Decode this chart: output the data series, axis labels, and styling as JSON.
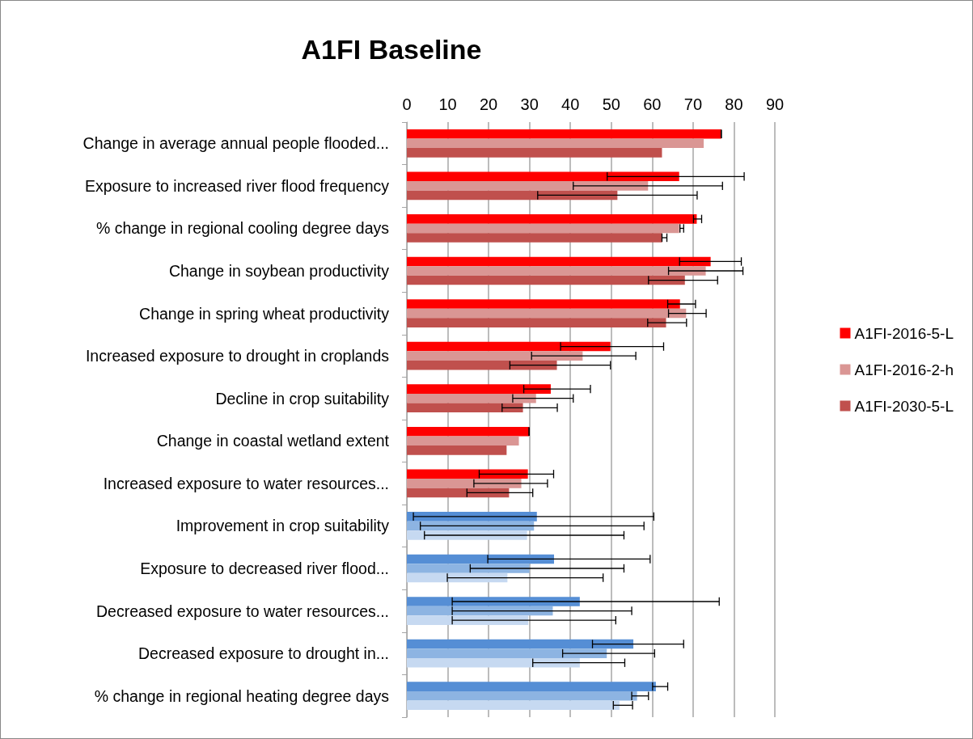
{
  "chart_data": {
    "type": "bar",
    "orientation": "horizontal",
    "title": "A1FI Baseline",
    "categories": [
      "Change in average annual people flooded...",
      "Exposure to increased river flood frequency",
      "% change in regional cooling degree days",
      "Change in soybean productivity",
      "Change in spring wheat productivity",
      "Increased exposure to drought in croplands",
      "Decline in crop suitability",
      "Change in coastal wetland extent",
      "Increased exposure to water resources...",
      "Improvement in crop suitability",
      "Exposure to decreased river flood...",
      "Decreased exposure to water resources...",
      "Decreased exposure to drought in...",
      "% change in regional heating degree days"
    ],
    "series": [
      {
        "name": "A1FI-2016-5-L",
        "color": "#ff0000",
        "colors": [
          "#ff0000",
          "#ff0000",
          "#ff0000",
          "#ff0000",
          "#ff0000",
          "#ff0000",
          "#ff0000",
          "#ff0000",
          "#ff0000",
          "#558ed5",
          "#558ed5",
          "#558ed5",
          "#558ed5",
          "#558ed5"
        ],
        "values": [
          76.9,
          66.6,
          70.9,
          74.3,
          66.8,
          49.8,
          35.2,
          29.9,
          29.6,
          31.8,
          36.0,
          42.3,
          55.4,
          60.9
        ],
        "errors": [
          [
            76.9,
            76.9
          ],
          [
            49.0,
            82.5
          ],
          [
            70.1,
            72.1
          ],
          [
            66.7,
            81.8
          ],
          [
            63.8,
            70.6
          ],
          [
            37.6,
            62.8
          ],
          [
            28.6,
            44.9
          ],
          [
            29.9,
            29.9
          ],
          [
            17.7,
            35.9
          ],
          [
            1.6,
            60.4
          ],
          [
            19.8,
            59.5
          ],
          [
            11.1,
            76.4
          ],
          [
            45.4,
            67.7
          ],
          [
            60.1,
            63.8
          ]
        ]
      },
      {
        "name": "A1FI-2016-2-h",
        "color": "#da9694",
        "colors": [
          "#da9694",
          "#da9694",
          "#da9694",
          "#da9694",
          "#da9694",
          "#da9694",
          "#da9694",
          "#da9694",
          "#da9694",
          "#8db4e2",
          "#8db4e2",
          "#8db4e2",
          "#8db4e2",
          "#8db4e2"
        ],
        "values": [
          72.6,
          59.0,
          66.6,
          73.1,
          68.3,
          43.0,
          31.6,
          27.4,
          28.0,
          31.1,
          30.0,
          35.7,
          48.9,
          56.3
        ],
        "errors": [
          null,
          [
            40.7,
            77.2
          ],
          [
            66.8,
            67.7
          ],
          [
            64.0,
            82.2
          ],
          [
            64.0,
            73.2
          ],
          [
            30.5,
            56.0
          ],
          [
            25.9,
            40.7
          ],
          null,
          [
            16.4,
            34.4
          ],
          [
            3.3,
            58.0
          ],
          [
            15.5,
            53.1
          ],
          [
            11.1,
            55.0
          ],
          [
            38.1,
            60.6
          ],
          [
            55.0,
            59.1
          ]
        ]
      },
      {
        "name": "A1FI-2030-5-L",
        "color": "#c0504d",
        "colors": [
          "#c0504d",
          "#c0504d",
          "#c0504d",
          "#c0504d",
          "#c0504d",
          "#c0504d",
          "#c0504d",
          "#c0504d",
          "#c0504d",
          "#c6d9f1",
          "#c6d9f1",
          "#c6d9f1",
          "#c6d9f1",
          "#c6d9f1"
        ],
        "values": [
          62.4,
          51.5,
          62.4,
          68.0,
          63.4,
          36.7,
          28.4,
          24.4,
          25.0,
          29.4,
          24.6,
          29.7,
          42.3,
          52.0
        ],
        "errors": [
          null,
          [
            32.0,
            71.0
          ],
          [
            62.4,
            63.6
          ],
          [
            59.1,
            76.0
          ],
          [
            58.9,
            68.4
          ],
          [
            25.2,
            49.8
          ],
          [
            23.3,
            36.8
          ],
          null,
          [
            14.7,
            30.8
          ],
          [
            4.3,
            53.1
          ],
          [
            9.9,
            48.0
          ],
          [
            11.1,
            51.1
          ],
          [
            30.8,
            53.3
          ],
          [
            50.5,
            55.2
          ]
        ]
      }
    ],
    "xlim": [
      0,
      90
    ],
    "xticks": [
      0,
      10,
      20,
      30,
      40,
      50,
      60,
      70,
      80,
      90
    ],
    "grid": "x",
    "legend": "right"
  }
}
